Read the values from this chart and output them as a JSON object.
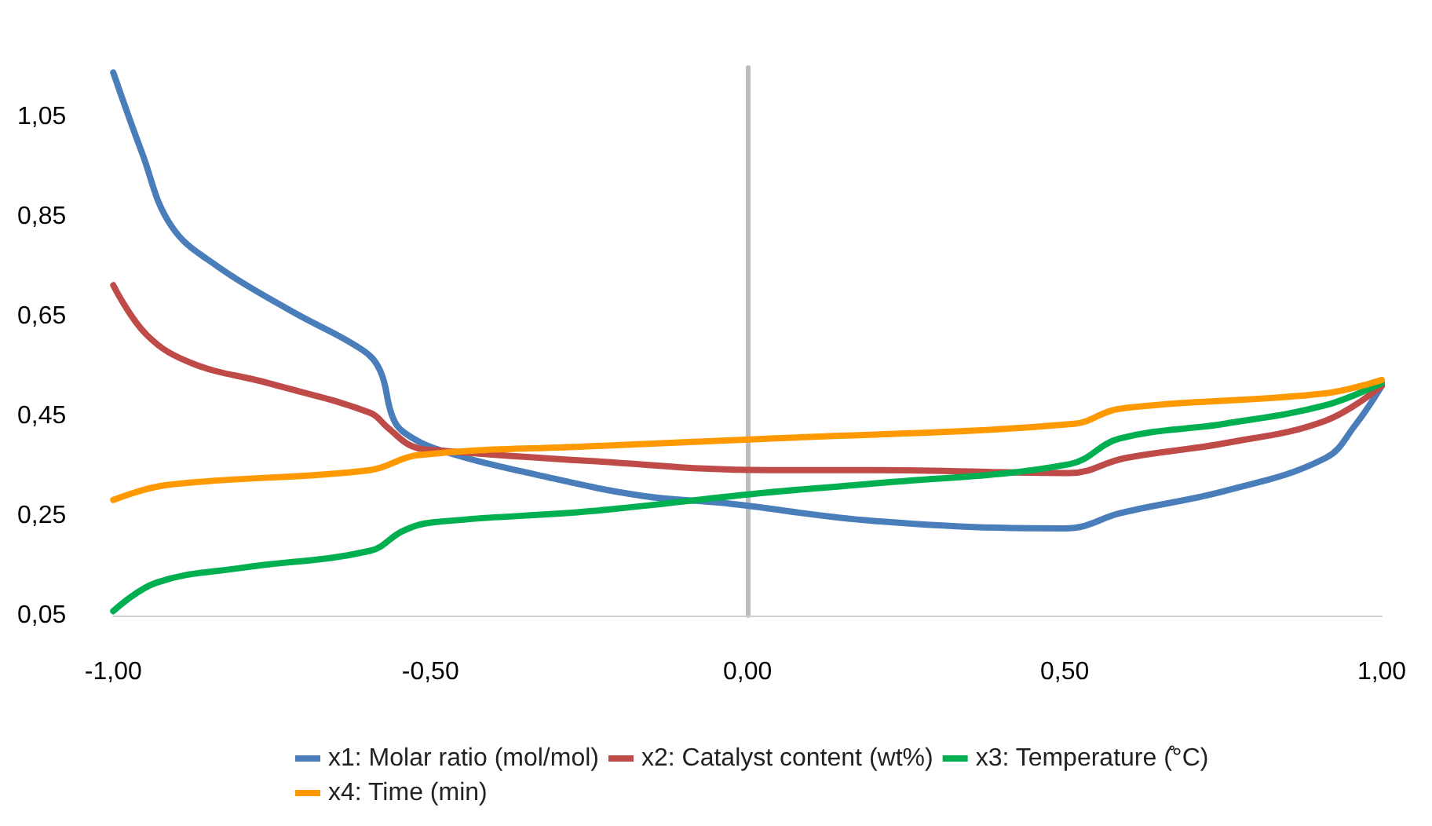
{
  "chart_data": {
    "type": "line",
    "xlim": [
      -1,
      1
    ],
    "ylim": [
      0.05,
      1.15
    ],
    "xticks": [
      {
        "value": -1,
        "label": "-1,00"
      },
      {
        "value": -0.5,
        "label": "-0,50"
      },
      {
        "value": 0,
        "label": "0,00"
      },
      {
        "value": 0.5,
        "label": "0,50"
      },
      {
        "value": 1,
        "label": "1,00"
      }
    ],
    "yticks": [
      {
        "value": 0.05,
        "label": "0,05"
      },
      {
        "value": 0.25,
        "label": "0,25"
      },
      {
        "value": 0.45,
        "label": "0,45"
      },
      {
        "value": 0.65,
        "label": "0,65"
      },
      {
        "value": 0.85,
        "label": "0,85"
      },
      {
        "value": 1.05,
        "label": "1,05"
      }
    ],
    "legend": "bottom",
    "marker": "none",
    "line_style": "solid",
    "series": [
      {
        "name": "x1: Molar ratio (mol/mol)",
        "color": "#4a7ebb",
        "x": [
          -1,
          -0.955,
          -0.909,
          -0.837,
          -0.719,
          -0.607,
          -0.579,
          -0.56,
          -0.541,
          -0.482,
          -0.323,
          -0.164,
          -0.038,
          0.199,
          0.5,
          0.531,
          0.586,
          0.752,
          0.911,
          0.958,
          1
        ],
        "values": [
          1.14,
          0.98,
          0.833,
          0.752,
          0.661,
          0.583,
          0.541,
          0.45,
          0.417,
          0.381,
          0.33,
          0.29,
          0.276,
          0.24,
          0.225,
          0.23,
          0.255,
          0.3,
          0.366,
          0.432,
          0.511
        ]
      },
      {
        "name": "x2: Catalyst content (wt%)",
        "color": "#be4b48",
        "x": [
          -1,
          -0.947,
          -0.875,
          -0.757,
          -0.595,
          -0.567,
          -0.529,
          -0.482,
          -0.244,
          0.031,
          0.199,
          0.508,
          0.595,
          0.752,
          0.911,
          1
        ],
        "values": [
          0.713,
          0.613,
          0.556,
          0.517,
          0.457,
          0.427,
          0.39,
          0.381,
          0.36,
          0.342,
          0.342,
          0.336,
          0.366,
          0.396,
          0.441,
          0.511
        ]
      },
      {
        "name": "x3: Temperature (̊°C)",
        "color": "#00b050",
        "x": [
          -1,
          -0.932,
          -0.797,
          -0.595,
          -0.543,
          -0.496,
          -0.244,
          0.031,
          0.199,
          0.508,
          0.586,
          0.752,
          0.911,
          1
        ],
        "values": [
          0.059,
          0.116,
          0.146,
          0.18,
          0.22,
          0.237,
          0.26,
          0.297,
          0.315,
          0.354,
          0.405,
          0.435,
          0.472,
          0.517
        ]
      },
      {
        "name": "x4: Time (min)",
        "color": "#ff9900",
        "x": [
          -1,
          -0.916,
          -0.595,
          -0.52,
          -0.244,
          0.031,
          0.515,
          0.586,
          0.911,
          1
        ],
        "values": [
          0.282,
          0.312,
          0.342,
          0.372,
          0.39,
          0.405,
          0.435,
          0.465,
          0.496,
          0.523
        ]
      }
    ]
  }
}
